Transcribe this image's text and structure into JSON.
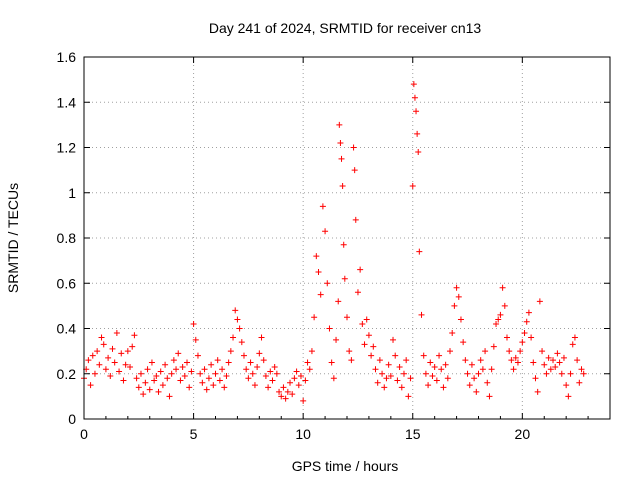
{
  "chart_data": {
    "type": "scatter",
    "title": "Day 241 of 2024, SRMTID for receiver cn13",
    "xlabel": "GPS time / hours",
    "ylabel": "SRMTID / TECUs",
    "xlim": [
      0,
      24
    ],
    "ylim": [
      0,
      1.6
    ],
    "x_ticks": [
      0,
      5,
      10,
      15,
      20
    ],
    "x_tick_labels": [
      "0",
      "5",
      "10",
      "15",
      "20"
    ],
    "y_ticks": [
      0,
      0.2,
      0.4,
      0.6,
      0.8,
      1.0,
      1.2,
      1.4,
      1.6
    ],
    "y_tick_labels": [
      "0",
      "0.2",
      "0.4",
      "0.6",
      "0.8",
      "1",
      "1.2",
      "1.4",
      "1.6"
    ],
    "grid": true,
    "marker": "+",
    "marker_color": "#ff0000",
    "series": [
      {
        "name": "SRMTID",
        "points": [
          [
            0.0,
            0.18
          ],
          [
            0.1,
            0.22
          ],
          [
            0.2,
            0.26
          ],
          [
            0.3,
            0.15
          ],
          [
            0.4,
            0.28
          ],
          [
            0.5,
            0.2
          ],
          [
            0.6,
            0.3
          ],
          [
            0.7,
            0.24
          ],
          [
            0.8,
            0.36
          ],
          [
            0.9,
            0.33
          ],
          [
            1.0,
            0.22
          ],
          [
            1.1,
            0.27
          ],
          [
            1.2,
            0.19
          ],
          [
            1.3,
            0.31
          ],
          [
            1.4,
            0.25
          ],
          [
            1.5,
            0.38
          ],
          [
            1.6,
            0.21
          ],
          [
            1.7,
            0.29
          ],
          [
            1.8,
            0.17
          ],
          [
            1.9,
            0.24
          ],
          [
            2.0,
            0.3
          ],
          [
            2.1,
            0.23
          ],
          [
            2.2,
            0.32
          ],
          [
            2.3,
            0.37
          ],
          [
            2.4,
            0.18
          ],
          [
            2.5,
            0.14
          ],
          [
            2.6,
            0.2
          ],
          [
            2.7,
            0.11
          ],
          [
            2.8,
            0.16
          ],
          [
            2.9,
            0.22
          ],
          [
            3.0,
            0.13
          ],
          [
            3.1,
            0.25
          ],
          [
            3.2,
            0.17
          ],
          [
            3.3,
            0.19
          ],
          [
            3.4,
            0.12
          ],
          [
            3.5,
            0.21
          ],
          [
            3.6,
            0.15
          ],
          [
            3.7,
            0.24
          ],
          [
            3.8,
            0.18
          ],
          [
            3.9,
            0.1
          ],
          [
            4.0,
            0.2
          ],
          [
            4.1,
            0.26
          ],
          [
            4.2,
            0.22
          ],
          [
            4.3,
            0.29
          ],
          [
            4.4,
            0.17
          ],
          [
            4.5,
            0.23
          ],
          [
            4.6,
            0.19
          ],
          [
            4.7,
            0.25
          ],
          [
            4.8,
            0.14
          ],
          [
            4.9,
            0.21
          ],
          [
            5.0,
            0.42
          ],
          [
            5.1,
            0.35
          ],
          [
            5.2,
            0.28
          ],
          [
            5.3,
            0.2
          ],
          [
            5.4,
            0.16
          ],
          [
            5.5,
            0.22
          ],
          [
            5.6,
            0.13
          ],
          [
            5.7,
            0.18
          ],
          [
            5.8,
            0.24
          ],
          [
            5.9,
            0.15
          ],
          [
            6.0,
            0.2
          ],
          [
            6.1,
            0.26
          ],
          [
            6.2,
            0.17
          ],
          [
            6.3,
            0.22
          ],
          [
            6.4,
            0.14
          ],
          [
            6.5,
            0.19
          ],
          [
            6.6,
            0.25
          ],
          [
            6.7,
            0.3
          ],
          [
            6.8,
            0.36
          ],
          [
            6.9,
            0.48
          ],
          [
            7.0,
            0.44
          ],
          [
            7.1,
            0.4
          ],
          [
            7.2,
            0.34
          ],
          [
            7.3,
            0.28
          ],
          [
            7.4,
            0.22
          ],
          [
            7.5,
            0.18
          ],
          [
            7.6,
            0.25
          ],
          [
            7.7,
            0.2
          ],
          [
            7.8,
            0.15
          ],
          [
            7.9,
            0.23
          ],
          [
            8.0,
            0.29
          ],
          [
            8.1,
            0.36
          ],
          [
            8.2,
            0.26
          ],
          [
            8.3,
            0.19
          ],
          [
            8.4,
            0.14
          ],
          [
            8.5,
            0.21
          ],
          [
            8.6,
            0.17
          ],
          [
            8.7,
            0.23
          ],
          [
            8.8,
            0.2
          ],
          [
            8.9,
            0.12
          ],
          [
            9.0,
            0.1
          ],
          [
            9.1,
            0.14
          ],
          [
            9.2,
            0.09
          ],
          [
            9.3,
            0.12
          ],
          [
            9.4,
            0.16
          ],
          [
            9.5,
            0.11
          ],
          [
            9.6,
            0.18
          ],
          [
            9.7,
            0.21
          ],
          [
            9.8,
            0.15
          ],
          [
            9.9,
            0.19
          ],
          [
            10.0,
            0.08
          ],
          [
            10.1,
            0.17
          ],
          [
            10.2,
            0.25
          ],
          [
            10.3,
            0.22
          ],
          [
            10.4,
            0.3
          ],
          [
            10.5,
            0.45
          ],
          [
            10.6,
            0.72
          ],
          [
            10.7,
            0.65
          ],
          [
            10.8,
            0.55
          ],
          [
            10.9,
            0.94
          ],
          [
            11.0,
            0.83
          ],
          [
            11.1,
            0.6
          ],
          [
            11.2,
            0.4
          ],
          [
            11.3,
            0.25
          ],
          [
            11.4,
            0.18
          ],
          [
            11.5,
            0.35
          ],
          [
            11.6,
            0.52
          ],
          [
            11.65,
            1.3
          ],
          [
            11.7,
            1.22
          ],
          [
            11.75,
            1.15
          ],
          [
            11.8,
            1.03
          ],
          [
            11.85,
            0.77
          ],
          [
            11.9,
            0.62
          ],
          [
            12.0,
            0.45
          ],
          [
            12.1,
            0.3
          ],
          [
            12.2,
            0.26
          ],
          [
            12.3,
            1.2
          ],
          [
            12.35,
            1.1
          ],
          [
            12.4,
            0.88
          ],
          [
            12.5,
            0.56
          ],
          [
            12.6,
            0.66
          ],
          [
            12.7,
            0.42
          ],
          [
            12.8,
            0.33
          ],
          [
            12.9,
            0.44
          ],
          [
            13.0,
            0.37
          ],
          [
            13.1,
            0.28
          ],
          [
            13.2,
            0.32
          ],
          [
            13.3,
            0.22
          ],
          [
            13.4,
            0.16
          ],
          [
            13.5,
            0.26
          ],
          [
            13.6,
            0.2
          ],
          [
            13.7,
            0.14
          ],
          [
            13.8,
            0.18
          ],
          [
            13.9,
            0.24
          ],
          [
            14.0,
            0.19
          ],
          [
            14.1,
            0.35
          ],
          [
            14.2,
            0.28
          ],
          [
            14.3,
            0.17
          ],
          [
            14.4,
            0.23
          ],
          [
            14.5,
            0.14
          ],
          [
            14.6,
            0.2
          ],
          [
            14.7,
            0.26
          ],
          [
            14.8,
            0.1
          ],
          [
            14.9,
            0.18
          ],
          [
            15.0,
            1.03
          ],
          [
            15.05,
            1.48
          ],
          [
            15.1,
            1.42
          ],
          [
            15.15,
            1.36
          ],
          [
            15.2,
            1.26
          ],
          [
            15.25,
            1.18
          ],
          [
            15.3,
            0.74
          ],
          [
            15.4,
            0.46
          ],
          [
            15.5,
            0.28
          ],
          [
            15.6,
            0.2
          ],
          [
            15.7,
            0.15
          ],
          [
            15.8,
            0.25
          ],
          [
            15.9,
            0.19
          ],
          [
            16.0,
            0.23
          ],
          [
            16.1,
            0.17
          ],
          [
            16.2,
            0.28
          ],
          [
            16.3,
            0.22
          ],
          [
            16.4,
            0.14
          ],
          [
            16.5,
            0.24
          ],
          [
            16.6,
            0.18
          ],
          [
            16.7,
            0.3
          ],
          [
            16.8,
            0.38
          ],
          [
            16.9,
            0.5
          ],
          [
            17.0,
            0.58
          ],
          [
            17.1,
            0.54
          ],
          [
            17.2,
            0.44
          ],
          [
            17.3,
            0.34
          ],
          [
            17.4,
            0.26
          ],
          [
            17.5,
            0.2
          ],
          [
            17.6,
            0.15
          ],
          [
            17.7,
            0.24
          ],
          [
            17.8,
            0.18
          ],
          [
            17.9,
            0.12
          ],
          [
            18.0,
            0.2
          ],
          [
            18.1,
            0.26
          ],
          [
            18.2,
            0.22
          ],
          [
            18.3,
            0.3
          ],
          [
            18.4,
            0.16
          ],
          [
            18.5,
            0.1
          ],
          [
            18.6,
            0.22
          ],
          [
            18.7,
            0.32
          ],
          [
            18.8,
            0.42
          ],
          [
            18.9,
            0.44
          ],
          [
            19.0,
            0.46
          ],
          [
            19.1,
            0.58
          ],
          [
            19.2,
            0.5
          ],
          [
            19.3,
            0.36
          ],
          [
            19.4,
            0.3
          ],
          [
            19.5,
            0.26
          ],
          [
            19.6,
            0.22
          ],
          [
            19.7,
            0.27
          ],
          [
            19.8,
            0.25
          ],
          [
            19.9,
            0.3
          ],
          [
            20.0,
            0.34
          ],
          [
            20.1,
            0.38
          ],
          [
            20.2,
            0.43
          ],
          [
            20.3,
            0.47
          ],
          [
            20.4,
            0.36
          ],
          [
            20.5,
            0.25
          ],
          [
            20.6,
            0.18
          ],
          [
            20.7,
            0.12
          ],
          [
            20.8,
            0.52
          ],
          [
            20.9,
            0.3
          ],
          [
            21.0,
            0.24
          ],
          [
            21.1,
            0.2
          ],
          [
            21.2,
            0.27
          ],
          [
            21.3,
            0.22
          ],
          [
            21.4,
            0.26
          ],
          [
            21.5,
            0.23
          ],
          [
            21.6,
            0.29
          ],
          [
            21.7,
            0.25
          ],
          [
            21.8,
            0.2
          ],
          [
            21.9,
            0.27
          ],
          [
            22.0,
            0.15
          ],
          [
            22.1,
            0.1
          ],
          [
            22.2,
            0.2
          ],
          [
            22.3,
            0.33
          ],
          [
            22.4,
            0.36
          ],
          [
            22.5,
            0.26
          ],
          [
            22.6,
            0.16
          ],
          [
            22.7,
            0.22
          ],
          [
            22.8,
            0.2
          ]
        ]
      }
    ]
  }
}
